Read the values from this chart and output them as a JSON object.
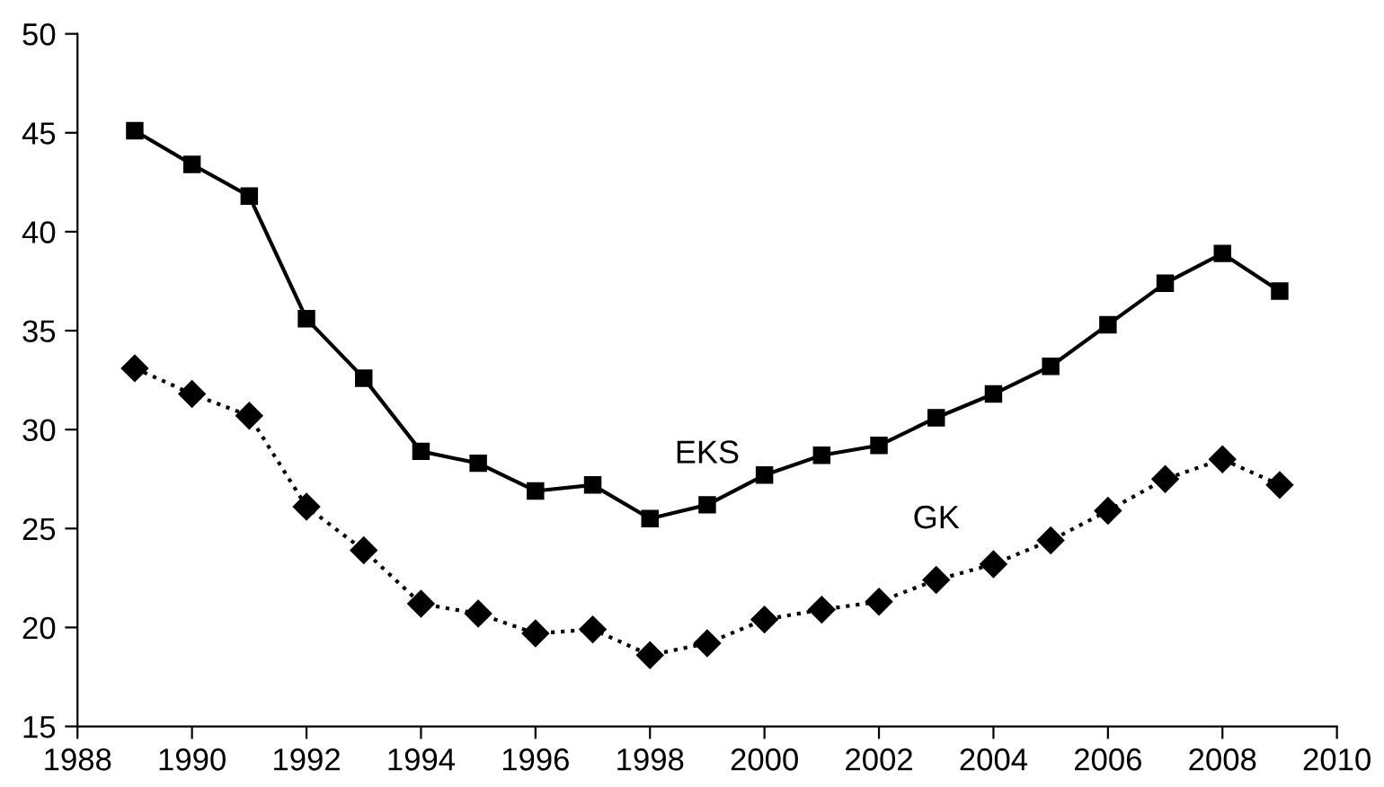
{
  "chart_data": {
    "type": "line",
    "x": [
      1989,
      1990,
      1991,
      1992,
      1993,
      1994,
      1995,
      1996,
      1997,
      1998,
      1999,
      2000,
      2001,
      2002,
      2003,
      2004,
      2005,
      2006,
      2007,
      2008,
      2009
    ],
    "series": [
      {
        "name": "EKS",
        "color": "#000000",
        "marker": "square",
        "line_style": "solid",
        "values": [
          45.1,
          43.4,
          41.8,
          35.6,
          32.6,
          28.9,
          28.3,
          26.9,
          27.2,
          25.5,
          26.2,
          27.7,
          28.7,
          29.2,
          30.6,
          31.8,
          33.2,
          35.3,
          37.4,
          38.9,
          37.0
        ]
      },
      {
        "name": "GK",
        "color": "#000000",
        "marker": "diamond",
        "line_style": "dotted",
        "values": [
          33.1,
          31.8,
          30.7,
          26.1,
          23.9,
          21.2,
          20.7,
          19.7,
          19.9,
          18.6,
          19.2,
          20.4,
          20.9,
          21.3,
          22.4,
          23.2,
          24.4,
          25.9,
          27.5,
          28.5,
          27.2
        ]
      }
    ],
    "xlim": [
      1988,
      2010
    ],
    "xticks": [
      1988,
      1990,
      1992,
      1994,
      1996,
      1998,
      2000,
      2002,
      2004,
      2006,
      2008,
      2010
    ],
    "ylim": [
      15,
      50
    ],
    "yticks": [
      15,
      20,
      25,
      30,
      35,
      40,
      45,
      50
    ],
    "grid": false,
    "legend": false
  }
}
